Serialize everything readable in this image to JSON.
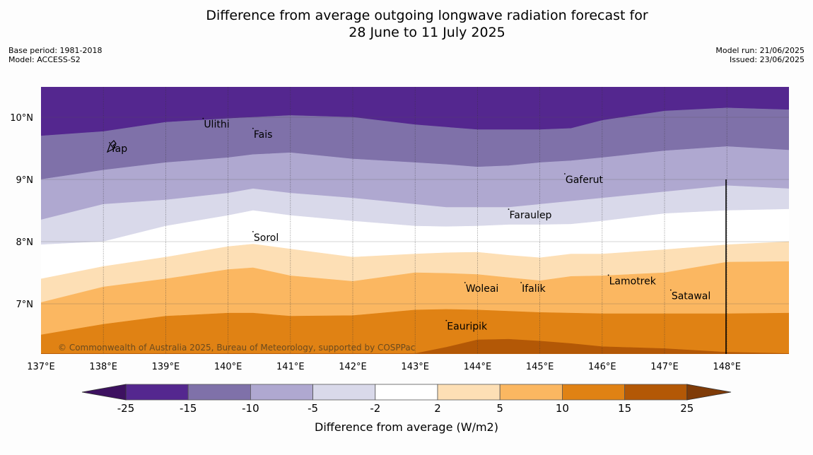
{
  "title": {
    "line1": "Difference from average outgoing longwave radiation forecast for",
    "line2": "28 June to 11 July 2025"
  },
  "meta": {
    "base_period": "Base period: 1981-2018",
    "model": "Model: ACCESS-S2",
    "model_run": "Model run: 21/06/2025",
    "issued": "Issued: 23/06/2025"
  },
  "copyright": "© Commonwealth of Australia 2025, Bureau of Meteorology, supported by COSPPac",
  "colors": {
    "purple_darkest": "#3d1160",
    "purple_dark": "#54278f",
    "purple_mid": "#7f71a9",
    "purple_light": "#afa8d0",
    "purple_pale": "#d9d9ea",
    "white": "#ffffff",
    "orange_pale": "#fddfb5",
    "orange_light": "#fbb761",
    "orange_mid": "#e08214",
    "orange_dark": "#b35806",
    "orange_darkest": "#7f3b08"
  },
  "chart_data": {
    "type": "heatmap",
    "xlim": [
      137,
      149
    ],
    "ylim": [
      6.2,
      10.5
    ],
    "x_ticks": [
      137,
      138,
      139,
      140,
      141,
      142,
      143,
      144,
      145,
      146,
      147,
      148
    ],
    "x_tick_labels": [
      "137°E",
      "138°E",
      "139°E",
      "140°E",
      "141°E",
      "142°E",
      "143°E",
      "144°E",
      "145°E",
      "146°E",
      "147°E",
      "148°E"
    ],
    "y_ticks": [
      7,
      8,
      9,
      10
    ],
    "y_tick_labels": [
      "7°N",
      "8°N",
      "9°N",
      "10°N"
    ],
    "grid": true,
    "colorbar": {
      "label": "Difference from average (W/m2)",
      "ticks": [
        "-25",
        "-15",
        "-10",
        "-5",
        "-2",
        "2",
        "5",
        "10",
        "15",
        "25"
      ],
      "extend": "both"
    },
    "contour_x": [
      137,
      138,
      139,
      140,
      140.4,
      141,
      142,
      143,
      143.5,
      144,
      144.5,
      145,
      145.5,
      146,
      147,
      148,
      149
    ],
    "boundaries": [
      {
        "name": "-25/-15",
        "y": [
          9.7,
          9.77,
          9.92,
          9.98,
          10.0,
          10.03,
          10.0,
          9.88,
          9.84,
          9.8,
          9.8,
          9.8,
          9.82,
          9.95,
          10.1,
          10.15,
          10.12
        ]
      },
      {
        "name": "-15/-10",
        "y": [
          9.0,
          9.15,
          9.27,
          9.35,
          9.4,
          9.43,
          9.33,
          9.27,
          9.24,
          9.2,
          9.22,
          9.27,
          9.3,
          9.35,
          9.46,
          9.53,
          9.47
        ]
      },
      {
        "name": "-10/-5",
        "y": [
          8.35,
          8.6,
          8.67,
          8.78,
          8.85,
          8.78,
          8.7,
          8.6,
          8.55,
          8.55,
          8.55,
          8.6,
          8.65,
          8.7,
          8.8,
          8.9,
          8.85
        ]
      },
      {
        "name": "-5/-2",
        "y": [
          7.95,
          8.0,
          8.25,
          8.42,
          8.5,
          8.42,
          8.33,
          8.25,
          8.24,
          8.25,
          8.27,
          8.27,
          8.28,
          8.33,
          8.45,
          8.5,
          8.52
        ]
      },
      {
        "name": "-2/2",
        "y": [
          7.4,
          7.6,
          7.75,
          7.92,
          7.96,
          7.88,
          7.75,
          7.8,
          7.82,
          7.83,
          7.78,
          7.74,
          7.8,
          7.8,
          7.87,
          7.95,
          8.0
        ]
      },
      {
        "name": "2/5",
        "y": [
          7.02,
          7.27,
          7.4,
          7.55,
          7.58,
          7.45,
          7.36,
          7.5,
          7.49,
          7.47,
          7.42,
          7.37,
          7.44,
          7.45,
          7.5,
          7.67,
          7.68
        ]
      },
      {
        "name": "5/10",
        "y": [
          6.5,
          6.67,
          6.8,
          6.85,
          6.85,
          6.8,
          6.81,
          6.9,
          6.91,
          6.9,
          6.88,
          6.86,
          6.85,
          6.84,
          6.84,
          6.84,
          6.85
        ]
      },
      {
        "name": "10/15",
        "y": [
          6.2,
          6.2,
          6.2,
          6.2,
          6.2,
          6.2,
          6.2,
          6.2,
          6.3,
          6.42,
          6.43,
          6.4,
          6.36,
          6.31,
          6.28,
          6.22,
          6.2
        ]
      }
    ],
    "locations": [
      {
        "name": "Yap",
        "lon": 138.1,
        "lat": 9.5
      },
      {
        "name": "Ulithi",
        "lon": 139.6,
        "lat": 9.89
      },
      {
        "name": "Fais",
        "lon": 140.4,
        "lat": 9.73
      },
      {
        "name": "Gaferut",
        "lon": 145.4,
        "lat": 9.0
      },
      {
        "name": "Faraulep",
        "lon": 144.5,
        "lat": 8.43
      },
      {
        "name": "Sorol",
        "lon": 140.4,
        "lat": 8.07
      },
      {
        "name": "Woleai",
        "lon": 143.8,
        "lat": 7.25
      },
      {
        "name": "Ifalik",
        "lon": 144.7,
        "lat": 7.25
      },
      {
        "name": "Lamotrek",
        "lon": 146.1,
        "lat": 7.37
      },
      {
        "name": "Satawal",
        "lon": 147.1,
        "lat": 7.13
      },
      {
        "name": "Eauripik",
        "lon": 143.5,
        "lat": 6.64
      }
    ]
  }
}
